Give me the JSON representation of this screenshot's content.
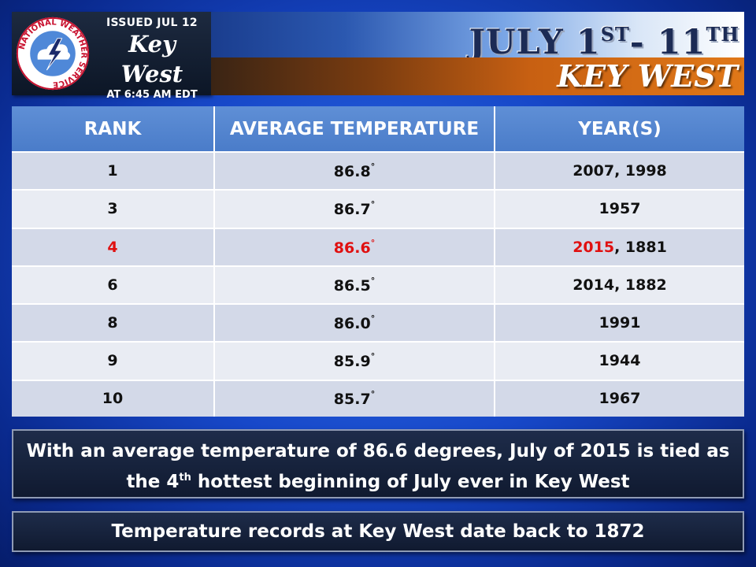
{
  "header": {
    "issued_label": "ISSUED JUL 12",
    "issued_place": "Key West",
    "issued_time": "AT 6:45 AM EDT",
    "title_part1": "JULY 1",
    "title_sup1": "ST",
    "title_part2": "- 11",
    "title_sup2": "TH",
    "subtitle": "KEY WEST",
    "logo_icon": "nws-logo-icon",
    "logo_text": "NATIONAL WEATHER SERVICE"
  },
  "table": {
    "headers": [
      "RANK",
      "AVERAGE TEMPERATURE",
      "YEAR(S)"
    ],
    "degree_symbol": "°",
    "rows": [
      {
        "rank": "1",
        "temp": "86.8",
        "years": "2007, 1998"
      },
      {
        "rank": "3",
        "temp": "86.7",
        "years": "1957"
      },
      {
        "rank": "4",
        "temp": "86.6",
        "years_highlight": "2015",
        "years_rest": ", 1881"
      },
      {
        "rank": "6",
        "temp": "86.5",
        "years": "2014, 1882"
      },
      {
        "rank": "8",
        "temp": "86.0",
        "years": "1991"
      },
      {
        "rank": "9",
        "temp": "85.9",
        "years": "1944"
      },
      {
        "rank": "10",
        "temp": "85.7",
        "years": "1967"
      }
    ]
  },
  "notes": {
    "main_line1": "With an average temperature of 86.6 degrees, July of 2015 is tied as",
    "main_line2_pre": "the 4",
    "main_line2_sup": "th",
    "main_line2_post": " hottest beginning of July ever in Key West",
    "records": "Temperature records at Key West date back to 1872"
  },
  "colors": {
    "highlight": "#e01010",
    "header_blue": "#4a7cc9",
    "accent_orange": "#e07818",
    "background_blue": "#1748c9"
  }
}
